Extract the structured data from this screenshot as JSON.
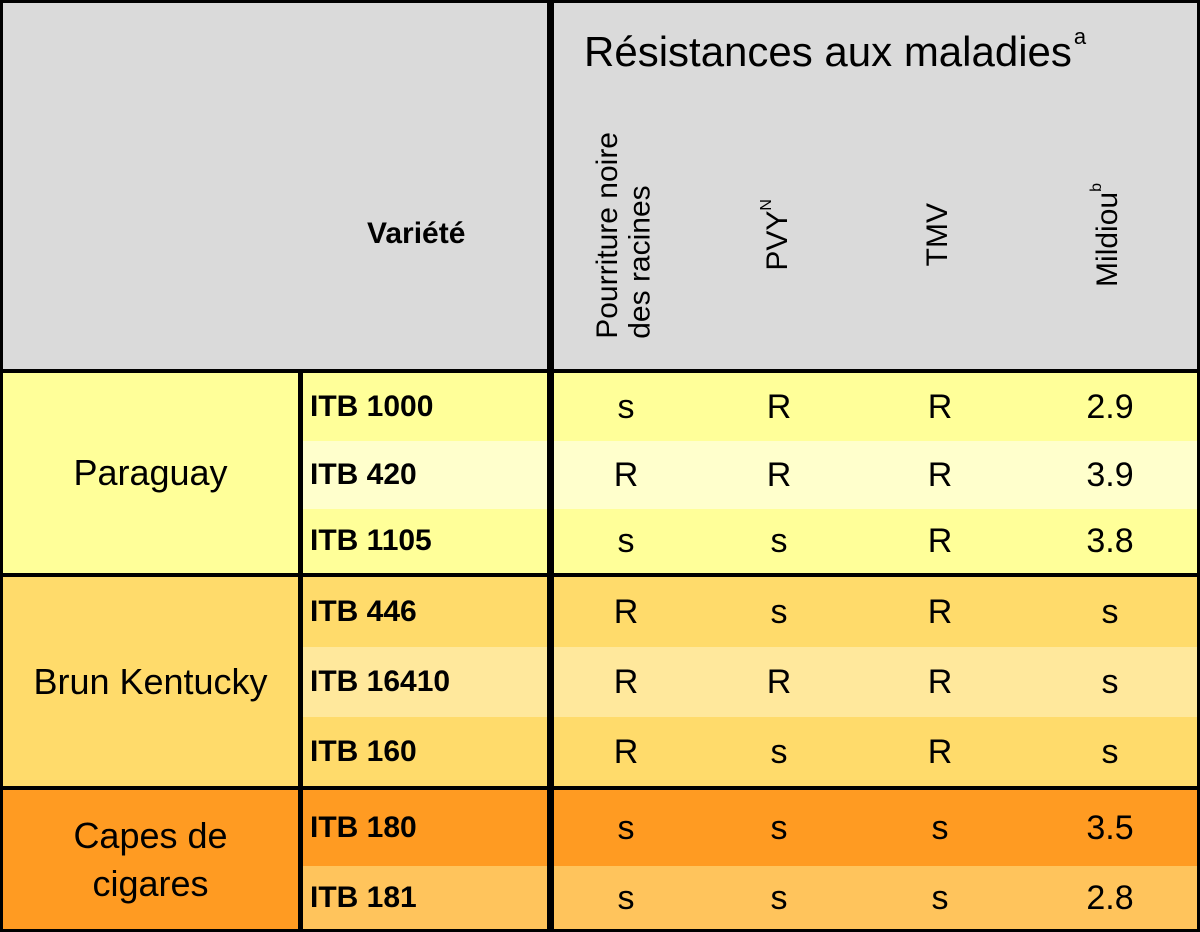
{
  "header": {
    "title": "Résistances aux maladies",
    "title_sup": "a",
    "variete_label": "Variété",
    "columns": [
      {
        "line1": "Pourriture noire",
        "line2": "des racines",
        "sup": ""
      },
      {
        "line1": "PVY",
        "line2": "",
        "sup": "N"
      },
      {
        "line1": "TMV",
        "line2": "",
        "sup": ""
      },
      {
        "line1": "Mildiou",
        "line2": "",
        "sup": "b"
      }
    ]
  },
  "groups": [
    {
      "label_line1": "Paraguay",
      "label_line2": "",
      "color": "#ffff99"
    },
    {
      "label_line1": "Brun Kentucky",
      "label_line2": "",
      "color": "#ffdb6b"
    },
    {
      "label_line1": "Capes de",
      "label_line2": "cigares",
      "color": "#ff9b22"
    }
  ],
  "rows": [
    {
      "variety": "ITB 1000",
      "values": [
        "s",
        "R",
        "R",
        "2.9"
      ],
      "color": "#ffff99"
    },
    {
      "variety": "ITB 420",
      "values": [
        "R",
        "R",
        "R",
        "3.9"
      ],
      "color": "#ffffcc"
    },
    {
      "variety": "ITB 1105",
      "values": [
        "s",
        "s",
        "R",
        "3.8"
      ],
      "color": "#ffff99"
    },
    {
      "variety": "ITB 446",
      "values": [
        "R",
        "s",
        "R",
        "s"
      ],
      "color": "#ffdb6b"
    },
    {
      "variety": "ITB 16410",
      "values": [
        "R",
        "R",
        "R",
        "s"
      ],
      "color": "#ffe89c"
    },
    {
      "variety": "ITB 160",
      "values": [
        "R",
        "s",
        "R",
        "s"
      ],
      "color": "#ffdb6b"
    },
    {
      "variety": "ITB 180",
      "values": [
        "s",
        "s",
        "s",
        "3.5"
      ],
      "color": "#ff9b22"
    },
    {
      "variety": "ITB 181",
      "values": [
        "s",
        "s",
        "s",
        "2.8"
      ],
      "color": "#ffc45c"
    }
  ]
}
